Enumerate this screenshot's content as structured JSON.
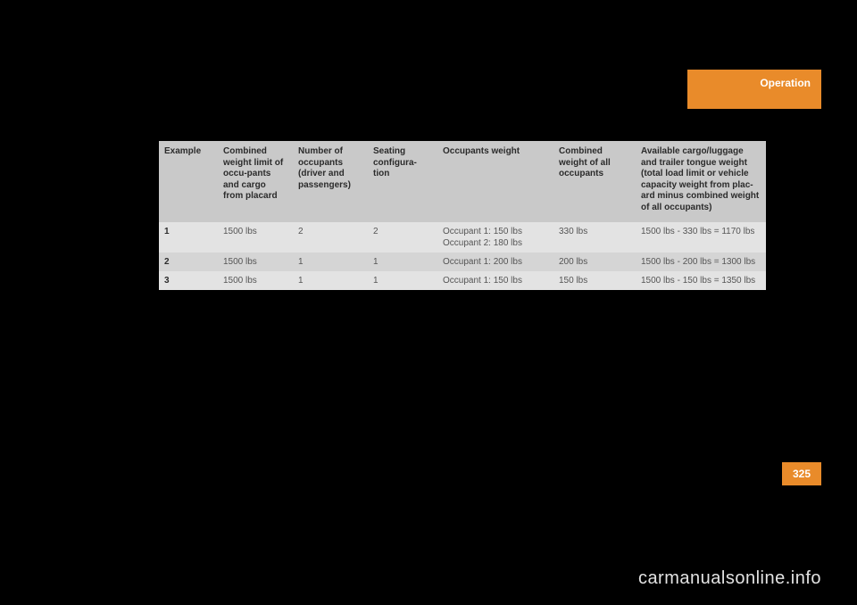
{
  "header": {
    "section_title": "Operation"
  },
  "page_number": "325",
  "table": {
    "headers": {
      "example": "Example",
      "combined_limit": "Combined weight limit of occu-pants and cargo from placard",
      "number_occupants": "Number of occupants (driver and passengers)",
      "seating": "Seating configura-tion",
      "occupants_weight": "Occupants weight",
      "combined_occ_weight": "Combined weight of all occupants",
      "available": "Available cargo/luggage and trailer tongue weight (total load limit or vehicle capacity weight from plac-ard minus combined weight of all occupants)"
    },
    "rows": [
      {
        "example": "1",
        "combined_limit": "1500 lbs",
        "number_occupants": "2",
        "seating": "2",
        "occupants_weight_l1": "Occupant 1: 150 lbs",
        "occupants_weight_l2": "Occupant 2: 180 lbs",
        "combined_occ_weight": "330 lbs",
        "available": "1500 lbs - 330 lbs = 1170 lbs"
      },
      {
        "example": "2",
        "combined_limit": "1500 lbs",
        "number_occupants": "1",
        "seating": "1",
        "occupants_weight_l1": "Occupant 1: 200 lbs",
        "occupants_weight_l2": "",
        "combined_occ_weight": "200 lbs",
        "available": "1500 lbs - 200 lbs = 1300 lbs"
      },
      {
        "example": "3",
        "combined_limit": "1500 lbs",
        "number_occupants": "1",
        "seating": "1",
        "occupants_weight_l1": "Occupant 1: 150 lbs",
        "occupants_weight_l2": "",
        "combined_occ_weight": "150 lbs",
        "available": "1500 lbs - 150 lbs = 1350 lbs"
      }
    ]
  },
  "watermark": "carmanualsonline.info",
  "colors": {
    "accent": "#e98b2a",
    "page_bg": "#000000",
    "header_row_bg": "#c9c9c9",
    "row_odd_bg": "#e3e3e3",
    "row_even_bg": "#d5d5d5",
    "watermark_color": "#e3e3e3"
  }
}
